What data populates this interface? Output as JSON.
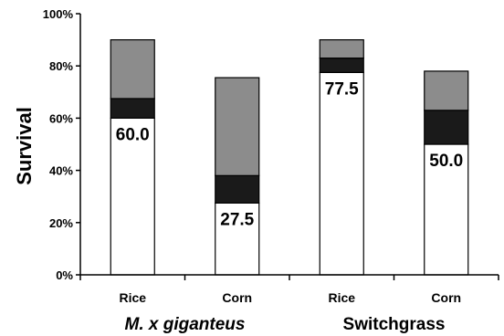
{
  "chart_data": {
    "type": "bar",
    "stacked": true,
    "ylabel": "Survival",
    "ylim": [
      0,
      100
    ],
    "yticks": [
      "0%",
      "20%",
      "40%",
      "60%",
      "80%",
      "100%"
    ],
    "categories": [
      "Rice",
      "Corn",
      "Rice",
      "Corn"
    ],
    "groups": [
      {
        "label": "M. x giganteus",
        "label_plain": "M. x ",
        "label_italic": "giganteus",
        "categories": [
          "Rice",
          "Corn"
        ]
      },
      {
        "label": "Switchgrass",
        "categories": [
          "Rice",
          "Corn"
        ]
      }
    ],
    "series": [
      {
        "color": "#ffffff",
        "values": [
          60.0,
          27.5,
          77.5,
          50.0
        ]
      },
      {
        "color": "#1a1a1a",
        "values": [
          7.5,
          10.5,
          5.5,
          13.0
        ]
      },
      {
        "color": "#8c8c8c",
        "values": [
          22.5,
          37.5,
          7.0,
          15.0
        ]
      }
    ],
    "data_labels": [
      "60.0",
      "27.5",
      "77.5",
      "50.0"
    ],
    "grid": false
  }
}
